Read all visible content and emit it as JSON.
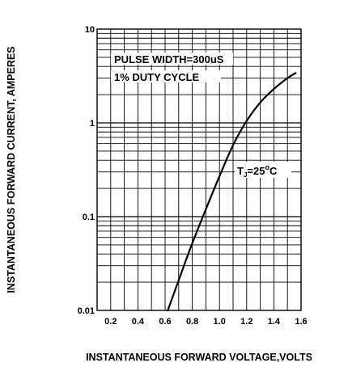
{
  "chart_data": {
    "type": "line",
    "title": "",
    "xlabel": "INSTANTANEOUS FORWARD VOLTAGE,VOLTS",
    "ylabel": "INSTANTANEOUS FORWARD CURRENT, AMPERES",
    "xlim": [
      0.1,
      1.6
    ],
    "ylim": [
      0.01,
      10
    ],
    "yscale": "log",
    "grid": true,
    "x_ticks": [
      "0.2",
      "0.4",
      "0.6",
      "0.8",
      "1.0",
      "1.2",
      "1.4",
      "1.6"
    ],
    "y_ticks": [
      "0.01",
      "0.1",
      "1",
      "10"
    ],
    "annotations": [
      "PULSE WIDTH=300uS",
      "1% DUTY CYCLE"
    ],
    "temperature_label": {
      "main": "T",
      "sub": "J",
      "rest": "=25",
      "deg": "o",
      "unit": "C"
    },
    "series": [
      {
        "x": [
          0.62,
          0.7,
          0.8,
          0.9,
          1.0,
          1.1,
          1.2,
          1.3,
          1.4,
          1.5,
          1.56
        ],
        "y": [
          0.01,
          0.021,
          0.052,
          0.12,
          0.27,
          0.58,
          1.05,
          1.65,
          2.3,
          3.0,
          3.4
        ]
      }
    ],
    "colors": {
      "line": "#000000",
      "grid": "#000000",
      "background": "#ffffff"
    }
  }
}
